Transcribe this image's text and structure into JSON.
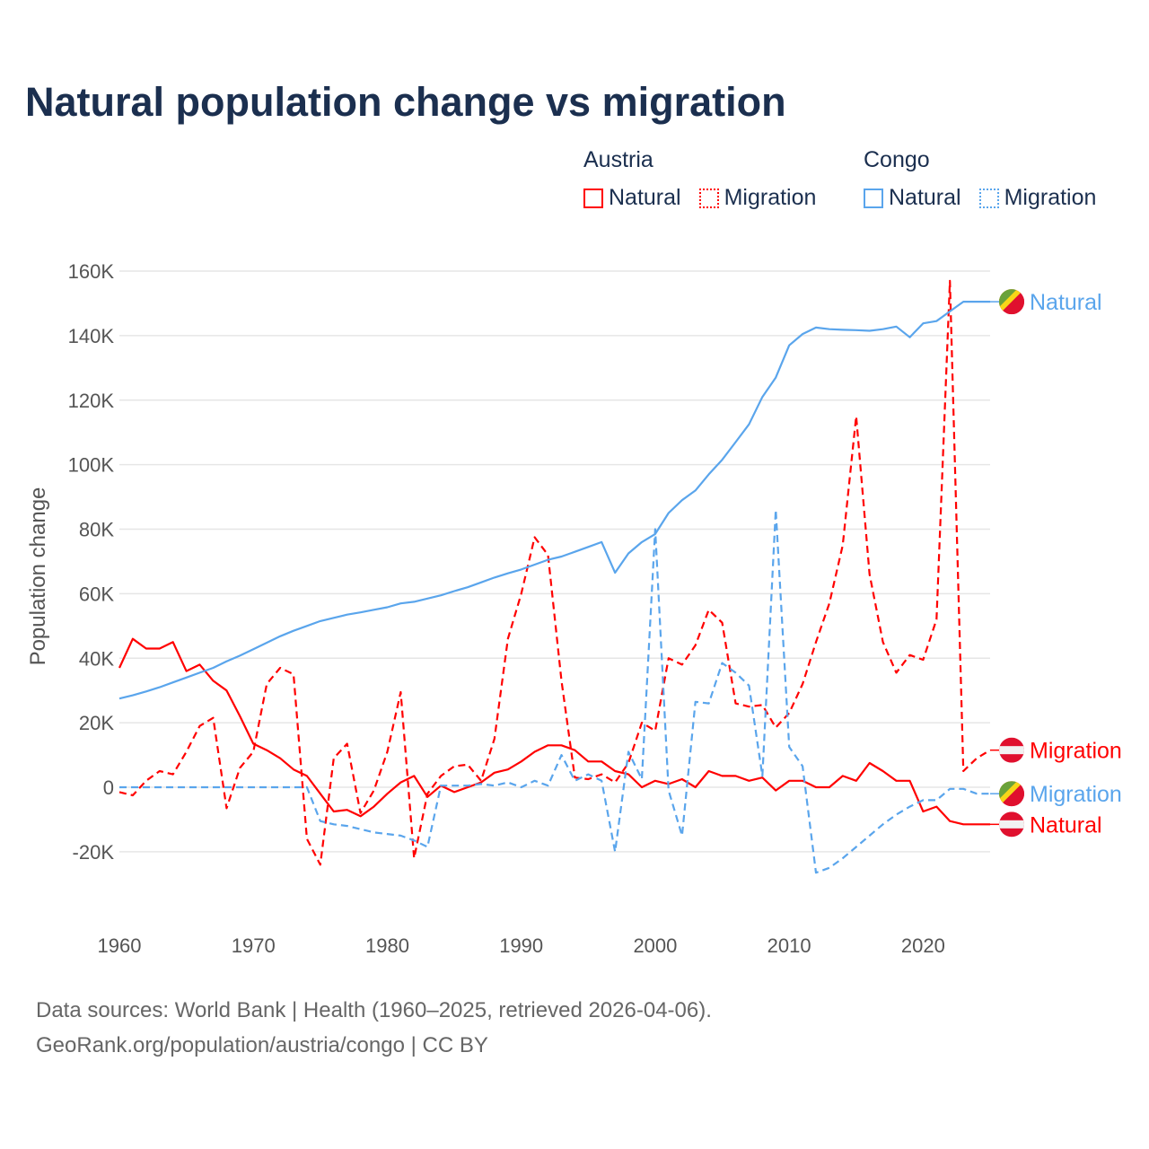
{
  "title": "Natural population change vs migration",
  "legend": {
    "groups": [
      {
        "name": "Austria",
        "items": [
          {
            "label": "Natural",
            "style": "solid"
          },
          {
            "label": "Migration",
            "style": "dotted"
          }
        ],
        "color": "#ff0000"
      },
      {
        "name": "Congo",
        "items": [
          {
            "label": "Natural",
            "style": "solid"
          },
          {
            "label": "Migration",
            "style": "dotted"
          }
        ],
        "color": "#5aa5ec"
      }
    ]
  },
  "footer": {
    "line1": "Data sources: World Bank | Health (1960–2025, retrieved 2026-04-06).",
    "line2": "GeoRank.org/population/austria/congo | CC BY"
  },
  "chart_data": {
    "type": "line",
    "title": "Natural population change vs migration",
    "xlabel": "",
    "ylabel": "Population change",
    "xlim": [
      1960,
      2025
    ],
    "ylim": [
      -20000,
      160000
    ],
    "x_ticks": [
      1960,
      1970,
      1980,
      1990,
      2000,
      2010,
      2020
    ],
    "y_ticks": [
      -20000,
      0,
      20000,
      40000,
      60000,
      80000,
      100000,
      120000,
      140000,
      160000
    ],
    "y_tick_labels": [
      "-20K",
      "0",
      "20K",
      "40K",
      "60K",
      "80K",
      "100K",
      "120K",
      "140K",
      "160K"
    ],
    "x_tick_labels": [
      "1960",
      "1970",
      "1980",
      "1990",
      "2000",
      "2010",
      "2020"
    ],
    "grid": true,
    "legend_position": "top-right",
    "x_start": 1960,
    "units": "thousands",
    "series": [
      {
        "name": "Austria Natural",
        "end_label": "Natural",
        "flag": "austria",
        "color": "#ff0000",
        "dashed": false,
        "values": [
          37,
          46,
          43,
          43,
          45,
          36,
          38,
          33,
          30,
          22,
          13.5,
          11.5,
          9,
          5.5,
          3.5,
          -2,
          -7.5,
          -7,
          -9,
          -6,
          -2,
          1.5,
          3.5,
          -3,
          0.5,
          -1.5,
          0,
          1.5,
          4.5,
          5.5,
          8,
          11,
          13,
          13,
          11.5,
          8,
          8,
          5,
          4,
          0,
          2,
          1,
          2.5,
          0,
          5,
          3.5,
          3.5,
          2,
          3,
          -1,
          2,
          2,
          0,
          0,
          3.5,
          2,
          7.5,
          5,
          2,
          2,
          -7.5,
          -6,
          -10.5,
          -11.5,
          -11.5,
          -11.5
        ]
      },
      {
        "name": "Austria Migration",
        "end_label": "Migration",
        "flag": "austria",
        "color": "#ff0000",
        "dashed": true,
        "values": [
          -1.5,
          -2.5,
          2,
          5,
          4,
          11,
          19,
          21.5,
          -6.5,
          6,
          11,
          32,
          37,
          35,
          -16,
          -24,
          9,
          13.5,
          -8,
          -1,
          11,
          29.5,
          -22,
          -2,
          3.5,
          6.5,
          7,
          2,
          15,
          46,
          60,
          77.5,
          72,
          33,
          3,
          2.5,
          4,
          1.5,
          7.5,
          20,
          17.5,
          40,
          38,
          44,
          55,
          51,
          26,
          25,
          25.5,
          18.5,
          23,
          32,
          45,
          57,
          75,
          115,
          66,
          45,
          35.5,
          41,
          39.5,
          52,
          157,
          5,
          9,
          11.5
        ]
      },
      {
        "name": "Congo Natural",
        "end_label": "Natural",
        "flag": "congo",
        "color": "#5aa5ec",
        "dashed": false,
        "values": [
          27.5,
          28.5,
          29.7,
          31,
          32.5,
          34,
          35.5,
          37,
          39,
          40.8,
          42.8,
          44.8,
          46.8,
          48.5,
          50,
          51.5,
          52.5,
          53.5,
          54.2,
          55,
          55.8,
          57,
          57.5,
          58.5,
          59.5,
          60.8,
          62,
          63.5,
          65,
          66.3,
          67.5,
          69,
          70.5,
          71.5,
          73,
          74.5,
          76,
          66.5,
          72.5,
          76,
          78.5,
          85,
          89,
          92,
          97,
          101.5,
          107,
          112.5,
          121,
          127,
          137,
          140.5,
          142.5,
          142,
          141.8,
          141.7,
          141.5,
          142,
          142.8,
          139.5,
          143.8,
          144.5,
          147.5,
          150.5,
          150.5,
          150.5
        ]
      },
      {
        "name": "Congo Migration",
        "end_label": "Migration",
        "flag": "congo",
        "color": "#5aa5ec",
        "dashed": true,
        "values": [
          0,
          0,
          0,
          0,
          0,
          0,
          0,
          0,
          0,
          0,
          0,
          0,
          0,
          0,
          0,
          -10.5,
          -11.5,
          -12,
          -13,
          -14,
          -14.5,
          -15,
          -16.5,
          -18.5,
          0.5,
          0.5,
          0.5,
          1,
          0.5,
          1.5,
          0,
          2,
          0.5,
          10,
          2,
          4,
          2,
          -20,
          11,
          2.5,
          80,
          -1,
          -15,
          26.5,
          26,
          38.5,
          35.5,
          31.5,
          3.5,
          86,
          12.5,
          6.5,
          -26.5,
          -25,
          -22,
          -18.5,
          -15,
          -11.5,
          -8.5,
          -6,
          -4,
          -4,
          -0.5,
          -0.5,
          -2,
          -2
        ]
      }
    ]
  }
}
